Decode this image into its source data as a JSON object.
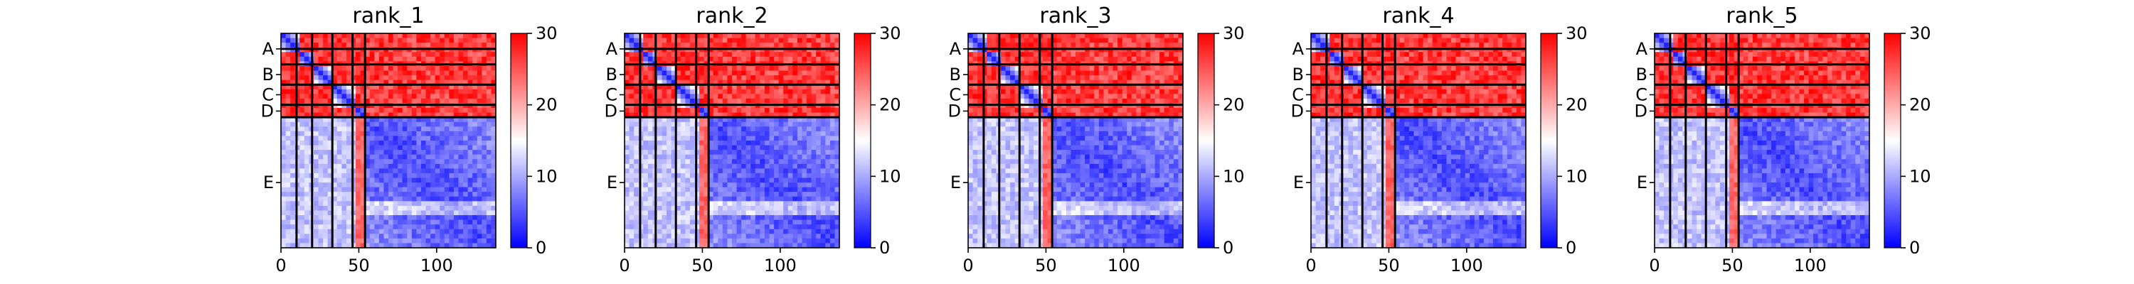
{
  "chart_data": [
    {
      "type": "heatmap",
      "title": "rank_1",
      "ytick_labels": [
        "A",
        "B",
        "C",
        "D",
        "E"
      ],
      "xticks": [
        0,
        50,
        100
      ],
      "xlim": [
        0,
        138
      ],
      "chain_boundaries": [
        0,
        10,
        20,
        33,
        46,
        54,
        138
      ],
      "colorbar": {
        "min": 0,
        "max": 30,
        "ticks": [
          0,
          10,
          20,
          30
        ],
        "colors": {
          "low": "#0000ff",
          "mid": "#ffffff",
          "high": "#ff0000"
        }
      },
      "grid": true
    },
    {
      "type": "heatmap",
      "title": "rank_2",
      "ytick_labels": [
        "A",
        "B",
        "C",
        "D",
        "E"
      ],
      "xticks": [
        0,
        50,
        100
      ],
      "xlim": [
        0,
        138
      ],
      "chain_boundaries": [
        0,
        10,
        20,
        33,
        46,
        54,
        138
      ],
      "colorbar": {
        "min": 0,
        "max": 30,
        "ticks": [
          0,
          10,
          20,
          30
        ],
        "colors": {
          "low": "#0000ff",
          "mid": "#ffffff",
          "high": "#ff0000"
        }
      },
      "grid": true
    },
    {
      "type": "heatmap",
      "title": "rank_3",
      "ytick_labels": [
        "A",
        "B",
        "C",
        "D",
        "E"
      ],
      "xticks": [
        0,
        50,
        100
      ],
      "xlim": [
        0,
        138
      ],
      "chain_boundaries": [
        0,
        10,
        20,
        33,
        46,
        54,
        138
      ],
      "colorbar": {
        "min": 0,
        "max": 30,
        "ticks": [
          0,
          10,
          20,
          30
        ],
        "colors": {
          "low": "#0000ff",
          "mid": "#ffffff",
          "high": "#ff0000"
        }
      },
      "grid": true
    },
    {
      "type": "heatmap",
      "title": "rank_4",
      "ytick_labels": [
        "A",
        "B",
        "C",
        "D",
        "E"
      ],
      "xticks": [
        0,
        50,
        100
      ],
      "xlim": [
        0,
        138
      ],
      "chain_boundaries": [
        0,
        10,
        20,
        33,
        46,
        54,
        138
      ],
      "colorbar": {
        "min": 0,
        "max": 30,
        "ticks": [
          0,
          10,
          20,
          30
        ],
        "colors": {
          "low": "#0000ff",
          "mid": "#ffffff",
          "high": "#ff0000"
        }
      },
      "grid": true
    },
    {
      "type": "heatmap",
      "title": "rank_5",
      "ytick_labels": [
        "A",
        "B",
        "C",
        "D",
        "E"
      ],
      "xticks": [
        0,
        50,
        100
      ],
      "xlim": [
        0,
        138
      ],
      "chain_boundaries": [
        0,
        10,
        20,
        33,
        46,
        54,
        138
      ],
      "colorbar": {
        "min": 0,
        "max": 30,
        "ticks": [
          0,
          10,
          20,
          30
        ],
        "colors": {
          "low": "#0000ff",
          "mid": "#ffffff",
          "high": "#ff0000"
        }
      },
      "grid": true
    }
  ]
}
